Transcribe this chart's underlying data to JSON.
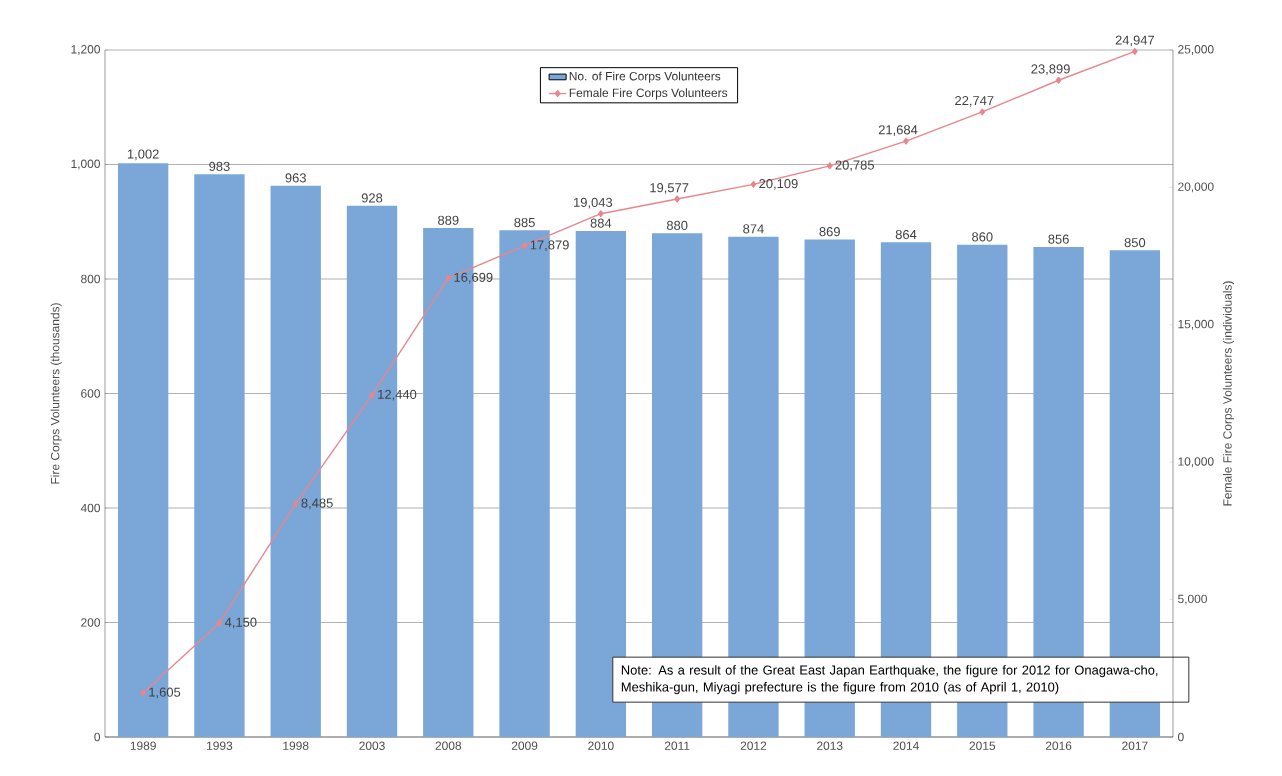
{
  "chart_data": {
    "type": "bar",
    "categories": [
      "1989",
      "1993",
      "1998",
      "2003",
      "2008",
      "2009",
      "2010",
      "2011",
      "2012",
      "2013",
      "2014",
      "2015",
      "2016",
      "2017"
    ],
    "ylabel": "Fire Corps Volunteers (thousands)",
    "y2label": "Female Fire Corps Volunteers (individuals)",
    "ylim": [
      0,
      1200
    ],
    "yticks": [
      0,
      200,
      400,
      600,
      800,
      {
        "value": 1000,
        "label": "1,000"
      },
      {
        "value": 1200,
        "label": "1,200"
      }
    ],
    "y2lim": [
      0,
      25000
    ],
    "y2ticks": [
      0,
      {
        "value": 5000,
        "label": "5,000"
      },
      {
        "value": 10000,
        "label": "10,000"
      },
      {
        "value": 15000,
        "label": "15,000"
      },
      {
        "value": 20000,
        "label": "20,000"
      },
      {
        "value": 25000,
        "label": "25,000"
      }
    ],
    "grid": "y",
    "legend": "top",
    "marker": "diamond",
    "series": [
      {
        "name": "No. of Fire Corps Volunteers",
        "color": "#7aa7d8",
        "values": [
          1002,
          983,
          963,
          928,
          889,
          885,
          884,
          880,
          874,
          869,
          864,
          860,
          856,
          850
        ],
        "value_labels": [
          "1,002",
          "983",
          "963",
          "928",
          "889",
          "885",
          "884",
          "880",
          "874",
          "869",
          "864",
          "860",
          "856",
          "850"
        ]
      },
      {
        "name": "Female Fire Corps Volunteers",
        "type": "line",
        "axis": "y2",
        "color": "#e8868c",
        "values": [
          1605,
          4150,
          8485,
          12440,
          16699,
          17879,
          19043,
          19577,
          20109,
          20785,
          21684,
          22747,
          23899,
          24947
        ],
        "value_labels": [
          "1,605",
          "4,150",
          "8,485",
          "12,440",
          "16,699",
          "17,879",
          "19,043",
          "19,577",
          "20,109",
          "20,785",
          "21,684",
          "22,747",
          "23,899",
          "24,947"
        ]
      }
    ],
    "annotations": [
      "Note: As a result of the Great East Japan Earthquake, the figure for 2012 for Onagawa-cho, Meshika-gun, Miyagi prefecture is the figure from 2010 (as of April 1, 2010)"
    ]
  }
}
